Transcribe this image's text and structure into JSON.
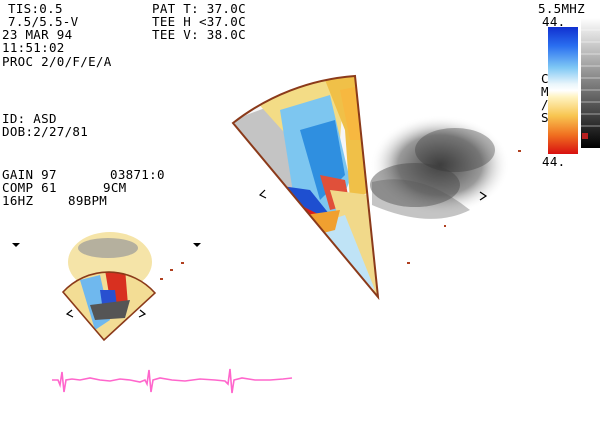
{
  "header_left": {
    "tis": "TIS:0.5",
    "freq": "7.5/5.5-V",
    "date": "23 MAR 94",
    "time": "11:51:02",
    "proc": "PROC 2/0/F/E/A"
  },
  "header_mid": {
    "pat_t": "PAT T: 37.0C",
    "tee_h": "TEE H <37.0C",
    "tee_v": "TEE V: 38.0C"
  },
  "patient": {
    "id": "ID: ASD",
    "dob": "DOB:2/27/81"
  },
  "settings": {
    "gain": "GAIN 97",
    "code": "03871:0",
    "comp": "COMP 61",
    "depth": "9CM",
    "hz": "16HZ",
    "bpm": "89BPM"
  },
  "colorbar": {
    "freq": "5.5MHZ",
    "top_value": "44.",
    "bottom_value": "44.",
    "unit_letters": [
      "C",
      "M",
      "/",
      "S"
    ]
  },
  "colors": {
    "sector_outline": "#8b3a1a",
    "ecg_trace": "#ff66cc",
    "flow_blue": "#3aa0e8",
    "flow_yellow": "#f5d36a",
    "flow_red": "#e02020"
  }
}
